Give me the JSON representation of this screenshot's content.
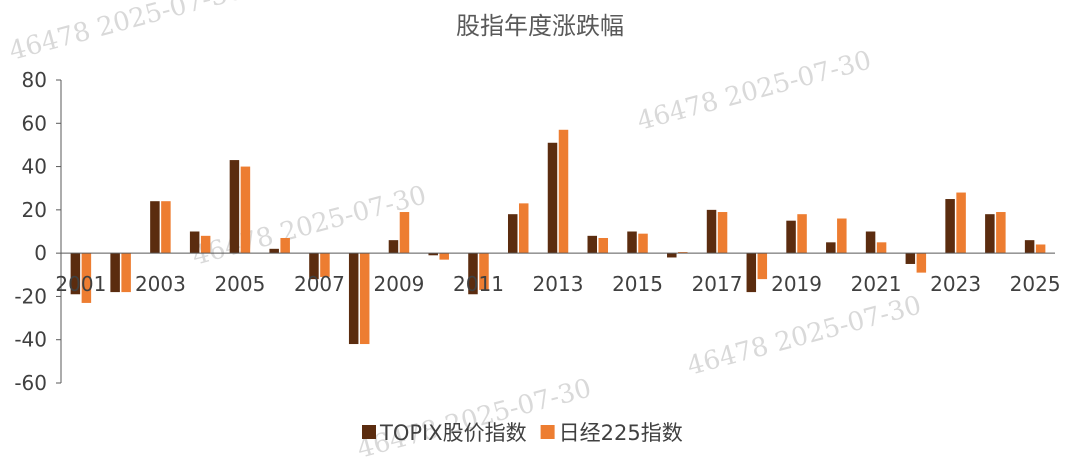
{
  "chart_data": {
    "type": "bar",
    "title": "股指年度涨跌幅",
    "xlabel": "",
    "ylabel": "",
    "ylim": [
      -60,
      80
    ],
    "yticks": [
      -60,
      -40,
      -20,
      0,
      20,
      40,
      60,
      80
    ],
    "grid": false,
    "legend_position": "bottom",
    "categories": [
      "2001",
      "2002",
      "2003",
      "2004",
      "2005",
      "2006",
      "2007",
      "2008",
      "2009",
      "2010",
      "2011",
      "2012",
      "2013",
      "2014",
      "2015",
      "2016",
      "2017",
      "2018",
      "2019",
      "2020",
      "2021",
      "2022",
      "2023",
      "2024",
      "2025"
    ],
    "x_tick_labels": [
      "2001",
      "2003",
      "2005",
      "2007",
      "2009",
      "2011",
      "2013",
      "2015",
      "2017",
      "2019",
      "2021",
      "2023",
      "2025"
    ],
    "series": [
      {
        "name": "TOPIX股价指数",
        "color": "#5b2c0f",
        "values": [
          -19,
          -18,
          24,
          10,
          43,
          2,
          -12,
          -42,
          6,
          -1,
          -19,
          18,
          51,
          8,
          10,
          -2,
          20,
          -18,
          15,
          5,
          10,
          -5,
          25,
          18,
          6
        ]
      },
      {
        "name": "日经225指数",
        "color": "#ed7d31",
        "values": [
          -23,
          -18,
          24,
          8,
          40,
          7,
          -11,
          -42,
          19,
          -3,
          -17,
          23,
          57,
          7,
          9,
          0.5,
          19,
          -12,
          18,
          16,
          5,
          -9,
          28,
          19,
          4
        ]
      }
    ],
    "watermarks": [
      "46478",
      "2025-07-30"
    ]
  }
}
